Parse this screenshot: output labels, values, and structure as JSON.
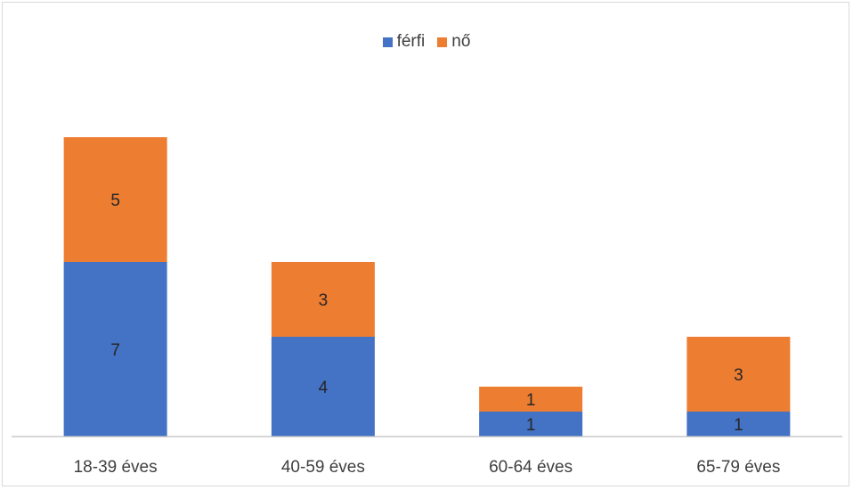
{
  "chart_data": {
    "type": "bar",
    "stacked": true,
    "categories": [
      "18-39 éves",
      "40-59 éves",
      "60-64 éves",
      "65-79 éves"
    ],
    "series": [
      {
        "name": "férfi",
        "values": [
          7,
          4,
          1,
          1
        ],
        "color": "#4472C4"
      },
      {
        "name": "nő",
        "values": [
          5,
          3,
          1,
          3
        ],
        "color": "#ED7D31"
      }
    ],
    "title": "",
    "xlabel": "",
    "ylabel": "",
    "ylim": [
      0,
      12
    ],
    "grid": false,
    "legend_position": "top-center",
    "data_labels": true
  }
}
